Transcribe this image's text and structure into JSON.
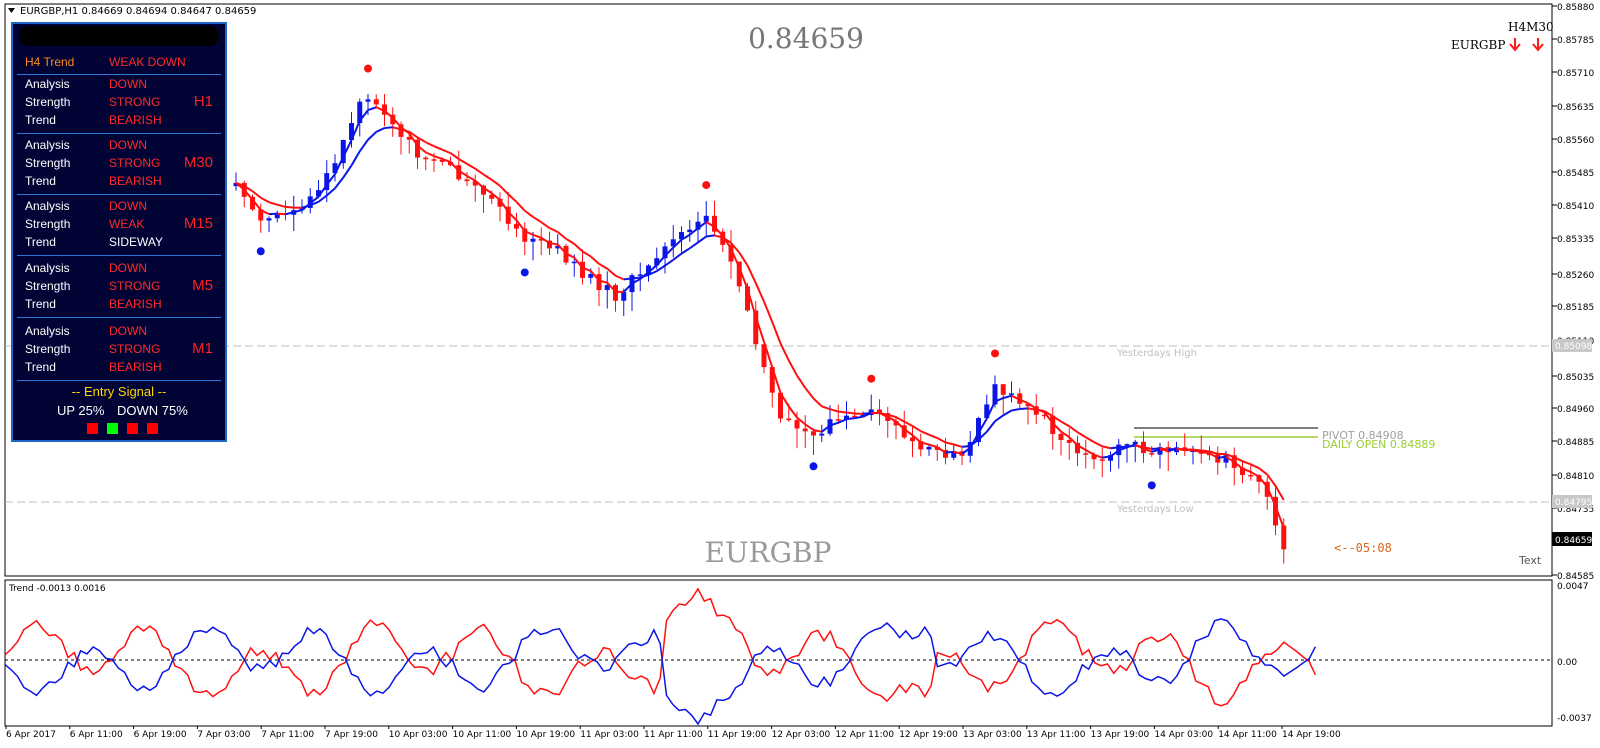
{
  "window": {
    "title_line": "EURGBP,H1  0.84669 0.84694 0.84647 0.84659",
    "big_price": "0.84659",
    "watermark": "EURGBP"
  },
  "price_axis": {
    "labels": [
      "0.85880",
      "0.85785",
      "0.85710",
      "0.85635",
      "0.85560",
      "0.85485",
      "0.85410",
      "0.85335",
      "0.85260",
      "0.85185",
      "0.85110",
      "0.85035",
      "0.84960",
      "0.84885",
      "0.84810",
      "0.84735",
      "0.84585"
    ],
    "marker_yh": "0.85098",
    "marker_yl": "0.84795",
    "marker_current": "0.84659"
  },
  "levels": {
    "yesterdays_high": "Yesterdays High",
    "yesterdays_low": "Yesterdays Low",
    "pivot": "PIVOT 0.84908",
    "daily_open": "DAILY OPEN 0.84889",
    "countdown": "<--05:08",
    "text_tag": "Text"
  },
  "mtf": {
    "label": "H4M30",
    "symbol": "EURGBP",
    "colors": {
      "arrow": "#ff1a1a"
    }
  },
  "indicator": {
    "title": "Trend -0.0013 0.0016",
    "labels": [
      "0.0047",
      "0.00",
      "-0.0037"
    ]
  },
  "time_axis": [
    "6 Apr 2017",
    "6 Apr 11:00",
    "6 Apr 19:00",
    "7 Apr 03:00",
    "7 Apr 11:00",
    "7 Apr 19:00",
    "10 Apr 03:00",
    "10 Apr 11:00",
    "10 Apr 19:00",
    "11 Apr 03:00",
    "11 Apr 11:00",
    "11 Apr 19:00",
    "12 Apr 03:00",
    "12 Apr 11:00",
    "12 Apr 19:00",
    "13 Apr 03:00",
    "13 Apr 11:00",
    "13 Apr 19:00",
    "14 Apr 03:00",
    "14 Apr 11:00",
    "14 Apr 19:00"
  ],
  "panel": {
    "h4_label": "H4 Trend",
    "h4_value": "WEAK DOWN",
    "groups": [
      {
        "tf": "H1",
        "analysis": "DOWN",
        "strength": "STRONG",
        "trend": "BEARISH"
      },
      {
        "tf": "M30",
        "analysis": "DOWN",
        "strength": "STRONG",
        "trend": "BEARISH"
      },
      {
        "tf": "M15",
        "analysis": "DOWN",
        "strength": "WEAK",
        "trend": "SIDEWAY"
      },
      {
        "tf": "M5",
        "analysis": "DOWN",
        "strength": "STRONG",
        "trend": "BEARISH"
      },
      {
        "tf": "M1",
        "analysis": "DOWN",
        "strength": "STRONG",
        "trend": "BEARISH"
      }
    ],
    "row_labels": {
      "analysis": "Analysis",
      "strength": "Strength",
      "trend": "Trend"
    },
    "entry_signal": "-- Entry Signal --",
    "up": "UP 25%",
    "down": "DOWN 75%",
    "signal_squares": [
      "red",
      "green",
      "red",
      "red"
    ]
  },
  "colors": {
    "bull": "#0a16e6",
    "bear": "#ff1010",
    "pivot": "#555555",
    "daily_open": "#9acd32",
    "grid_dash": "#bcbcbc"
  },
  "chart_data": {
    "type": "candlestick",
    "symbol": "EURGBP",
    "timeframe": "H1",
    "ylim": [
      0.84585,
      0.8588
    ],
    "close_path": [
      [
        0,
        0.8547
      ],
      [
        3,
        0.854
      ],
      [
        8,
        0.8541
      ],
      [
        12,
        0.8553
      ],
      [
        15,
        0.8567
      ],
      [
        18,
        0.8564
      ],
      [
        22,
        0.8554
      ],
      [
        26,
        0.8551
      ],
      [
        30,
        0.8546
      ],
      [
        34,
        0.8536
      ],
      [
        38,
        0.8534
      ],
      [
        42,
        0.8527
      ],
      [
        46,
        0.8522
      ],
      [
        50,
        0.8529
      ],
      [
        54,
        0.8537
      ],
      [
        57,
        0.854
      ],
      [
        60,
        0.853
      ],
      [
        63,
        0.8511
      ],
      [
        66,
        0.8495
      ],
      [
        69,
        0.849
      ],
      [
        73,
        0.8494
      ],
      [
        77,
        0.8497
      ],
      [
        81,
        0.849
      ],
      [
        84,
        0.8487
      ],
      [
        88,
        0.8485
      ],
      [
        92,
        0.8501
      ],
      [
        96,
        0.8498
      ],
      [
        100,
        0.8489
      ],
      [
        104,
        0.8484
      ],
      [
        108,
        0.8488
      ],
      [
        112,
        0.8487
      ],
      [
        116,
        0.8486
      ],
      [
        120,
        0.8485
      ],
      [
        124,
        0.848
      ],
      [
        127,
        0.8465
      ]
    ],
    "indicator": {
      "name": "Trend",
      "values": [
        -0.0013,
        0.0016
      ],
      "ylim": [
        -0.0037,
        0.0047
      ]
    }
  }
}
